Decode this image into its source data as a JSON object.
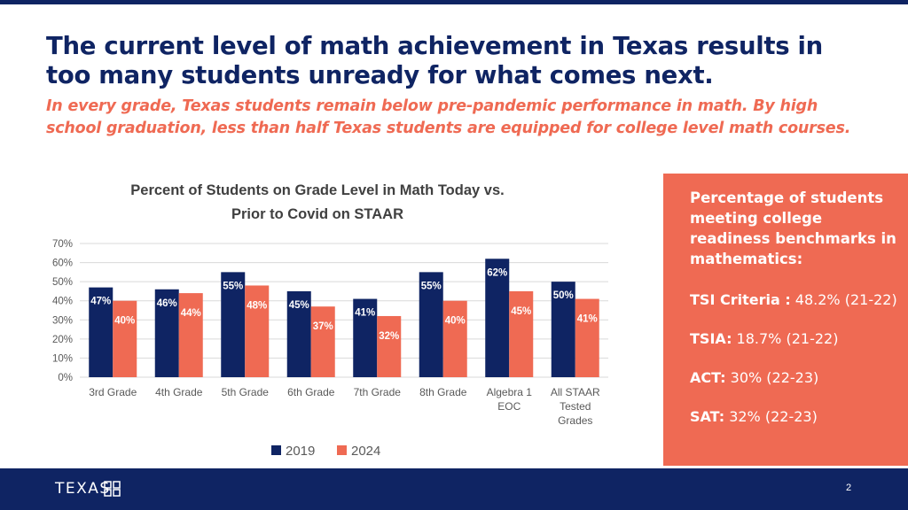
{
  "slide": {
    "title": "The current level of math achievement in Texas results in too many students unready for what comes next.",
    "subtitle": "In every grade, Texas students remain below pre-pandemic performance in math. By high school graduation, less than half Texas students are equipped for college level math courses.",
    "page_number": "2",
    "logo_text": "TEXAS",
    "colors": {
      "navy": "#0f2463",
      "coral": "#ef6a53",
      "grid": "#d9d9d9",
      "axis_text": "#595959",
      "title_text": "#404040"
    }
  },
  "panel": {
    "heading": "Percentage of students meeting college readiness benchmarks in mathematics:",
    "items": [
      {
        "label": "TSI Criteria :",
        "value": " 48.2% (21-22)"
      },
      {
        "label": "TSIA:",
        "value": " 18.7% (21-22)"
      },
      {
        "label": "ACT:",
        "value": " 30% (22-23)"
      },
      {
        "label": "SAT:",
        "value": " 32% (22-23)"
      }
    ]
  },
  "chart_data": {
    "type": "bar",
    "title": "Percent of Students on Grade Level in Math Today vs. Prior to Covid on STAAR",
    "title_lines": [
      "Percent of Students on Grade Level in Math Today vs.",
      "Prior to Covid on STAAR"
    ],
    "categories": [
      "3rd Grade",
      "4th Grade",
      "5th Grade",
      "6th Grade",
      "7th Grade",
      "8th Grade",
      "Algebra 1 EOC",
      "All STAAR Tested Grades"
    ],
    "category_lines": [
      [
        "3rd Grade"
      ],
      [
        "4th Grade"
      ],
      [
        "5th Grade"
      ],
      [
        "6th Grade"
      ],
      [
        "7th Grade"
      ],
      [
        "8th Grade"
      ],
      [
        "Algebra 1",
        "EOC"
      ],
      [
        "All STAAR",
        "Tested",
        "Grades"
      ]
    ],
    "series": [
      {
        "name": "2019",
        "color": "#0f2463",
        "values": [
          47,
          46,
          55,
          45,
          41,
          55,
          62,
          50
        ]
      },
      {
        "name": "2024",
        "color": "#ef6a53",
        "values": [
          40,
          44,
          48,
          37,
          32,
          40,
          45,
          41
        ]
      }
    ],
    "ylim": [
      0,
      70
    ],
    "yticks": [
      0,
      10,
      20,
      30,
      40,
      50,
      60,
      70
    ],
    "ytick_labels": [
      "0%",
      "10%",
      "20%",
      "30%",
      "40%",
      "50%",
      "60%",
      "70%"
    ],
    "value_suffix": "%",
    "grid": true,
    "legend_position": "bottom"
  }
}
